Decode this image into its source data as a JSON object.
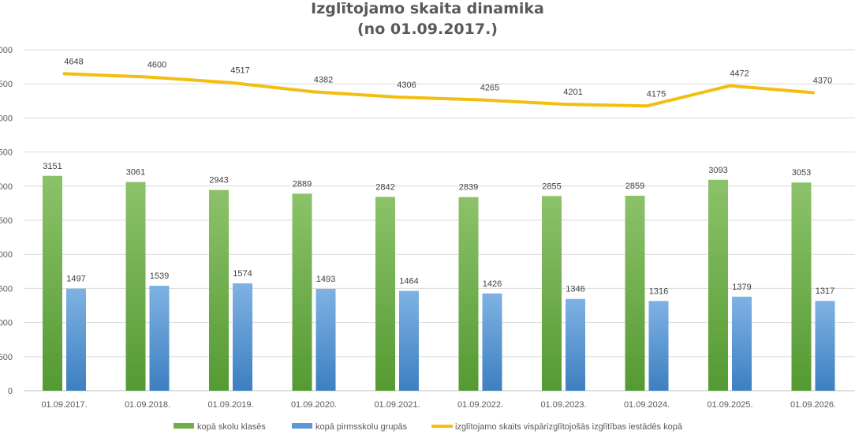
{
  "chart_data": {
    "type": "bar",
    "title": "Izglītojamo skaita dinamika",
    "subtitle": "(no 01.09.2017.)",
    "categories": [
      "01.09.2017.",
      "01.09.2018.",
      "01.09.2019.",
      "01.09.2020.",
      "01.09.2021.",
      "01.09.2022.",
      "01.09.2023.",
      "01.09.2024.",
      "01.09.2025.",
      "01.09.2026."
    ],
    "series": [
      {
        "name": "kopā skolu klasēs",
        "kind": "bar",
        "color": "#70AD47",
        "values": [
          3151,
          3061,
          2943,
          2889,
          2842,
          2839,
          2855,
          2859,
          3093,
          3053
        ]
      },
      {
        "name": "kopā pirmsskolu grupās",
        "kind": "bar",
        "color": "#5B9BD5",
        "values": [
          1497,
          1539,
          1574,
          1493,
          1464,
          1426,
          1346,
          1316,
          1379,
          1317
        ]
      },
      {
        "name": "izglītojamo skaits vispārizglītojošās izglītības iestādēs kopā",
        "kind": "line",
        "color": "#F2BE0F",
        "values": [
          4648,
          4600,
          4517,
          4382,
          4306,
          4265,
          4201,
          4175,
          4472,
          4370
        ]
      }
    ],
    "y_ticks": [
      "0",
      "500",
      "000",
      "500",
      "000",
      "500",
      "000",
      "500",
      "000",
      "500",
      "000"
    ],
    "ylim": [
      0,
      5000
    ],
    "y_step": 500,
    "grid": true,
    "legend_position": "bottom"
  }
}
